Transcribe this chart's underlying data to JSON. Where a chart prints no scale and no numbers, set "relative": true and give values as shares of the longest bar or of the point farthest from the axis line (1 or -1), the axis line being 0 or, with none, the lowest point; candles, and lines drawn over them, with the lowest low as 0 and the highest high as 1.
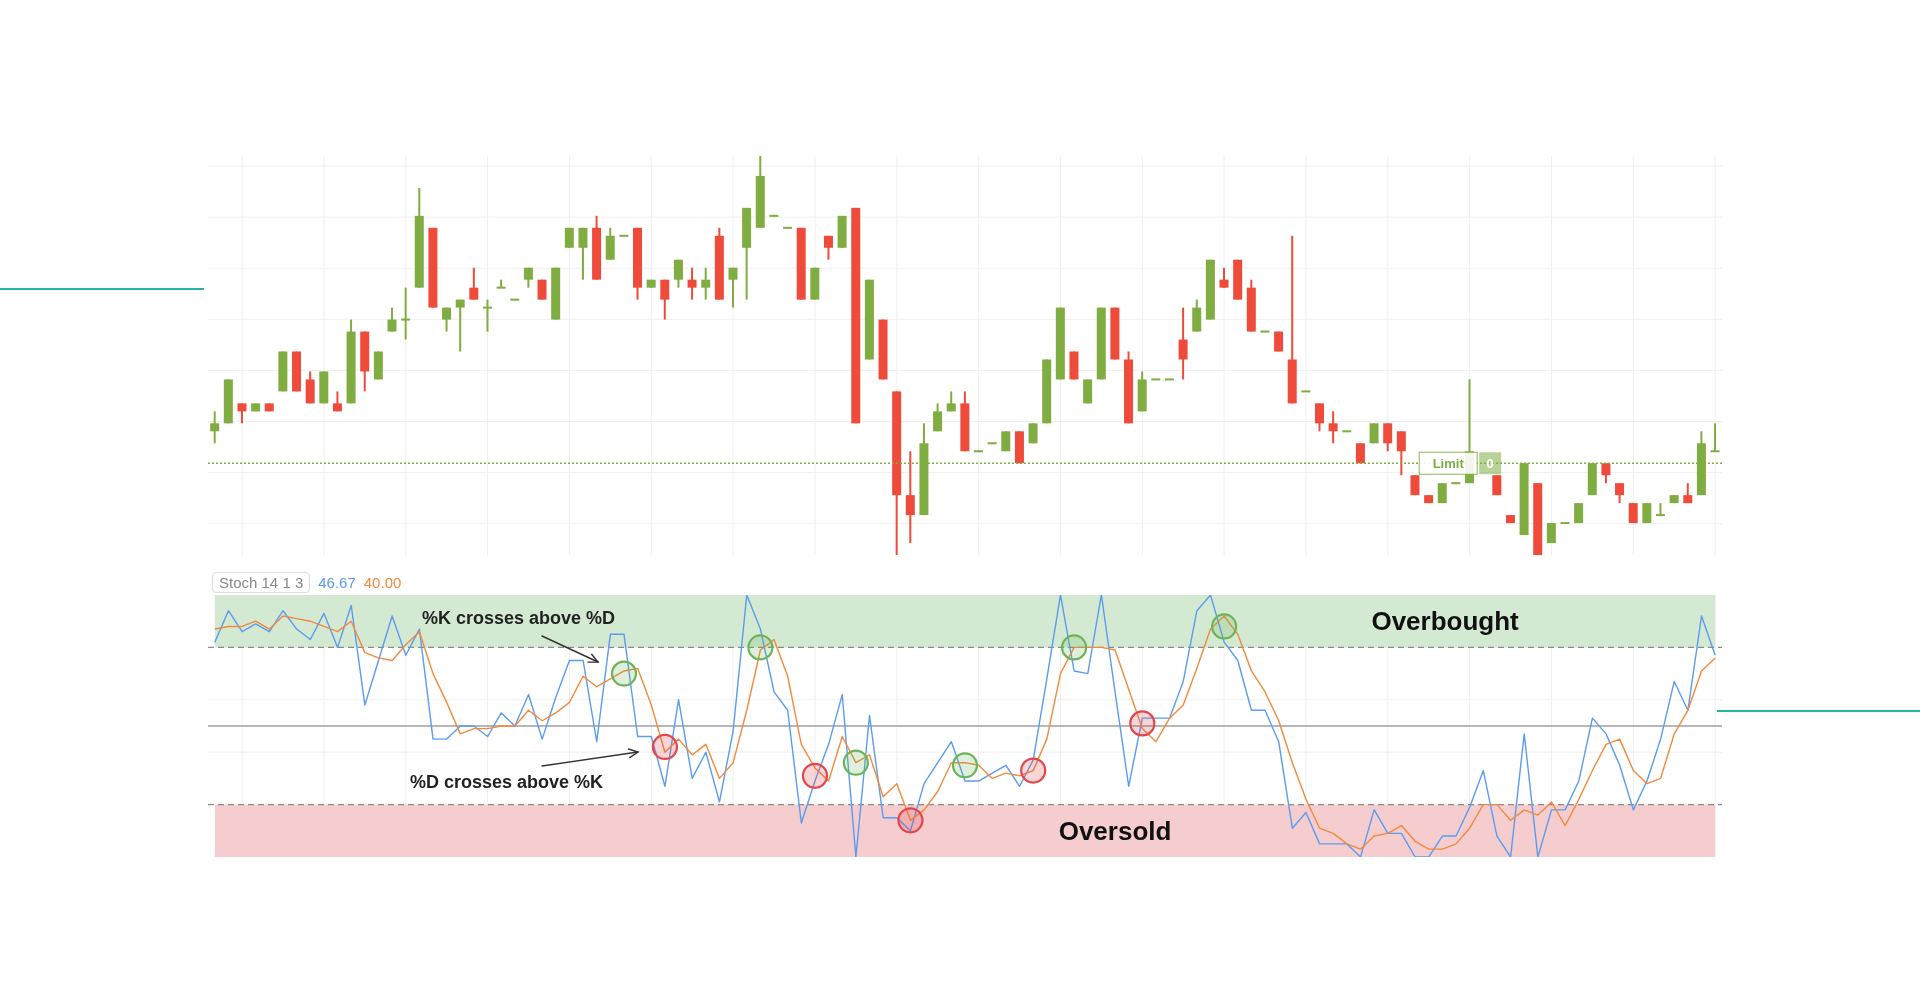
{
  "chart_data": [
    {
      "type": "candlestick",
      "relative": true,
      "grid": true,
      "tick_labels": false,
      "colors": [
        "#80ad41",
        "#80ad41",
        "#ee4b3b",
        "#80ad41",
        "#ee4b3b",
        "#80ad41",
        "#ee4b3b",
        "#ee4b3b",
        "#80ad41",
        "#ee4b3b",
        "#80ad41",
        "#ee4b3b",
        "#80ad41",
        "#80ad41",
        "#80ad41",
        "#80ad41",
        "#ee4b3b",
        "#80ad41",
        "#80ad41",
        "#ee4b3b",
        "#80ad41",
        "#80ad41",
        "#80ad41",
        "#80ad41",
        "#ee4b3b",
        "#80ad41",
        "#80ad41",
        "#80ad41",
        "#ee4b3b",
        "#80ad41",
        "#80ad41",
        "#ee4b3b",
        "#80ad41",
        "#ee4b3b",
        "#80ad41",
        "#ee4b3b",
        "#80ad41",
        "#ee4b3b",
        "#80ad41",
        "#80ad41",
        "#80ad41",
        "#80ad41",
        "#80ad41",
        "#ee4b3b",
        "#80ad41",
        "#ee4b3b",
        "#80ad41",
        "#ee4b3b",
        "#80ad41",
        "#ee4b3b",
        "#ee4b3b",
        "#ee4b3b",
        "#80ad41",
        "#80ad41",
        "#80ad41",
        "#ee4b3b",
        "#80ad41",
        "#80ad41",
        "#80ad41",
        "#ee4b3b",
        "#80ad41",
        "#80ad41",
        "#80ad41",
        "#ee4b3b",
        "#80ad41",
        "#80ad41",
        "#ee4b3b",
        "#ee4b3b",
        "#80ad41",
        "#80ad41",
        "#80ad41",
        "#ee4b3b",
        "#80ad41",
        "#80ad41",
        "#ee4b3b",
        "#ee4b3b",
        "#ee4b3b",
        "#80ad41",
        "#ee4b3b",
        "#ee4b3b",
        "#80ad41",
        "#ee4b3b",
        "#ee4b3b",
        "#80ad41",
        "#ee4b3b",
        "#80ad41",
        "#ee4b3b",
        "#ee4b3b",
        "#ee4b3b",
        "#ee4b3b",
        "#80ad41",
        "#80ad41",
        "#80ad41",
        "#80ad41",
        "#ee4b3b",
        "#ee4b3b",
        "#80ad41",
        "#ee4b3b",
        "#80ad41",
        "#80ad41",
        "#80ad41",
        "#80ad41",
        "#ee4b3b",
        "#ee4b3b",
        "#ee4b3b",
        "#80ad41",
        "#80ad41",
        "#80ad41",
        "#ee4b3b",
        "#80ad41",
        "#80ad41"
      ],
      "categories": [
        null,
        null,
        null,
        null,
        null,
        null,
        null,
        null,
        null,
        null,
        null,
        null,
        null,
        null,
        null,
        null,
        null,
        null,
        null,
        null,
        null,
        null,
        null,
        null,
        null,
        null,
        null,
        null,
        null,
        null,
        null,
        null,
        null,
        null,
        null,
        null,
        null,
        null,
        null,
        null,
        null,
        null,
        null,
        null,
        null,
        null,
        null,
        null,
        null,
        null,
        null,
        null,
        null,
        null,
        null,
        null,
        null,
        null,
        null,
        null,
        null,
        null,
        null,
        null,
        null,
        null,
        null,
        null,
        null,
        null,
        null,
        null,
        null,
        null,
        null,
        null,
        null,
        null,
        null,
        null,
        null,
        null,
        null,
        null,
        null,
        null,
        null,
        null,
        null,
        null,
        null,
        null,
        null,
        null,
        null,
        null,
        null,
        null,
        null,
        null,
        null,
        null,
        null,
        null,
        null,
        null,
        null,
        null,
        null,
        null,
        null
      ],
      "ohlc": [
        [
          0.31,
          0.36,
          0.28,
          0.33
        ],
        [
          0.33,
          0.44,
          0.33,
          0.44
        ],
        [
          0.38,
          0.38,
          0.33,
          0.36
        ],
        [
          0.36,
          0.38,
          0.36,
          0.38
        ],
        [
          0.38,
          0.38,
          0.36,
          0.36
        ],
        [
          0.41,
          0.51,
          0.41,
          0.51
        ],
        [
          0.51,
          0.51,
          0.41,
          0.41
        ],
        [
          0.44,
          0.46,
          0.38,
          0.38
        ],
        [
          0.38,
          0.46,
          0.38,
          0.46
        ],
        [
          0.38,
          0.41,
          0.36,
          0.36
        ],
        [
          0.38,
          0.59,
          0.38,
          0.56
        ],
        [
          0.56,
          0.56,
          0.41,
          0.46
        ],
        [
          0.44,
          0.51,
          0.44,
          0.51
        ],
        [
          0.56,
          0.62,
          0.56,
          0.59
        ],
        [
          0.59,
          0.67,
          0.54,
          0.59
        ],
        [
          0.67,
          0.92,
          0.67,
          0.85
        ],
        [
          0.82,
          0.82,
          0.62,
          0.62
        ],
        [
          0.59,
          0.62,
          0.56,
          0.62
        ],
        [
          0.62,
          0.64,
          0.51,
          0.64
        ],
        [
          0.67,
          0.72,
          0.64,
          0.64
        ],
        [
          0.62,
          0.64,
          0.56,
          0.62
        ],
        [
          0.67,
          0.69,
          0.67,
          0.67
        ],
        [
          0.64,
          0.64,
          0.64,
          0.64
        ],
        [
          0.69,
          0.72,
          0.67,
          0.72
        ],
        [
          0.69,
          0.69,
          0.64,
          0.64
        ],
        [
          0.59,
          0.72,
          0.59,
          0.72
        ],
        [
          0.77,
          0.82,
          0.77,
          0.82
        ],
        [
          0.77,
          0.82,
          0.69,
          0.82
        ],
        [
          0.82,
          0.85,
          0.69,
          0.69
        ],
        [
          0.74,
          0.82,
          0.74,
          0.8
        ],
        [
          0.8,
          0.8,
          0.8,
          0.8
        ],
        [
          0.82,
          0.82,
          0.64,
          0.67
        ],
        [
          0.67,
          0.69,
          0.67,
          0.69
        ],
        [
          0.69,
          0.69,
          0.59,
          0.64
        ],
        [
          0.69,
          0.74,
          0.67,
          0.74
        ],
        [
          0.69,
          0.72,
          0.64,
          0.67
        ],
        [
          0.67,
          0.72,
          0.64,
          0.69
        ],
        [
          0.8,
          0.82,
          0.64,
          0.64
        ],
        [
          0.69,
          0.72,
          0.62,
          0.72
        ],
        [
          0.77,
          0.87,
          0.64,
          0.87
        ],
        [
          0.82,
          1.0,
          0.82,
          0.95
        ],
        [
          0.85,
          0.85,
          0.85,
          0.85
        ],
        [
          0.82,
          0.82,
          0.82,
          0.82
        ],
        [
          0.82,
          0.82,
          0.64,
          0.64
        ],
        [
          0.64,
          0.72,
          0.64,
          0.72
        ],
        [
          0.8,
          0.8,
          0.74,
          0.77
        ],
        [
          0.77,
          0.85,
          0.77,
          0.85
        ],
        [
          0.87,
          0.87,
          0.33,
          0.33
        ],
        [
          0.49,
          0.69,
          0.49,
          0.69
        ],
        [
          0.59,
          0.59,
          0.44,
          0.44
        ],
        [
          0.41,
          0.41,
          0,
          0.15
        ],
        [
          0.15,
          0.26,
          0.03,
          0.1
        ],
        [
          0.1,
          0.33,
          0.1,
          0.28
        ],
        [
          0.31,
          0.38,
          0.31,
          0.36
        ],
        [
          0.36,
          0.41,
          0.36,
          0.38
        ],
        [
          0.38,
          0.41,
          0.26,
          0.26
        ],
        [
          0.26,
          0.26,
          0.26,
          0.26
        ],
        [
          0.28,
          0.28,
          0.28,
          0.28
        ],
        [
          0.26,
          0.31,
          0.26,
          0.31
        ],
        [
          0.31,
          0.31,
          0.23,
          0.23
        ],
        [
          0.28,
          0.33,
          0.28,
          0.33
        ],
        [
          0.33,
          0.49,
          0.33,
          0.49
        ],
        [
          0.44,
          0.62,
          0.44,
          0.62
        ],
        [
          0.51,
          0.51,
          0.44,
          0.44
        ],
        [
          0.38,
          0.44,
          0.38,
          0.44
        ],
        [
          0.44,
          0.62,
          0.44,
          0.62
        ],
        [
          0.62,
          0.62,
          0.49,
          0.49
        ],
        [
          0.49,
          0.51,
          0.33,
          0.33
        ],
        [
          0.36,
          0.46,
          0.36,
          0.44
        ],
        [
          0.44,
          0.44,
          0.44,
          0.44
        ],
        [
          0.44,
          0.44,
          0.44,
          0.44
        ],
        [
          0.54,
          0.62,
          0.44,
          0.49
        ],
        [
          0.56,
          0.64,
          0.56,
          0.62
        ],
        [
          0.59,
          0.74,
          0.59,
          0.74
        ],
        [
          0.69,
          0.72,
          0.67,
          0.67
        ],
        [
          0.74,
          0.74,
          0.64,
          0.64
        ],
        [
          0.67,
          0.69,
          0.56,
          0.56
        ],
        [
          0.56,
          0.56,
          0.56,
          0.56
        ],
        [
          0.56,
          0.56,
          0.51,
          0.51
        ],
        [
          0.49,
          0.8,
          0.38,
          0.38
        ],
        [
          0.41,
          0.41,
          0.41,
          0.41
        ],
        [
          0.38,
          0.38,
          0.31,
          0.33
        ],
        [
          0.33,
          0.36,
          0.28,
          0.31
        ],
        [
          0.31,
          0.31,
          0.31,
          0.31
        ],
        [
          0.28,
          0.28,
          0.23,
          0.23
        ],
        [
          0.28,
          0.33,
          0.28,
          0.33
        ],
        [
          0.33,
          0.33,
          0.26,
          0.28
        ],
        [
          0.31,
          0.31,
          0.2,
          0.26
        ],
        [
          0.2,
          0.2,
          0.15,
          0.15
        ],
        [
          0.15,
          0.15,
          0.13,
          0.13
        ],
        [
          0.13,
          0.18,
          0.13,
          0.18
        ],
        [
          0.18,
          0.18,
          0.18,
          0.18
        ],
        [
          0.18,
          0.44,
          0.18,
          0.26
        ],
        null,
        [
          0.2,
          0.2,
          0.15,
          0.15
        ],
        [
          0.1,
          0.1,
          0.08,
          0.08
        ],
        [
          0.05,
          0.23,
          0.05,
          0.23
        ],
        [
          0.18,
          0.18,
          0,
          0
        ],
        [
          0.03,
          0.08,
          0.03,
          0.08
        ],
        [
          0.08,
          0.08,
          0.08,
          0.08
        ],
        [
          0.08,
          0.13,
          0.08,
          0.13
        ],
        [
          0.15,
          0.23,
          0.15,
          0.23
        ],
        [
          0.23,
          0.23,
          0.18,
          0.2
        ],
        [
          0.18,
          0.18,
          0.13,
          0.15
        ],
        [
          0.13,
          0.13,
          0.08,
          0.08
        ],
        [
          0.08,
          0.13,
          0.08,
          0.13
        ],
        [
          0.1,
          0.13,
          0.1,
          0.1
        ],
        [
          0.13,
          0.15,
          0.13,
          0.15
        ],
        [
          0.15,
          0.18,
          0.13,
          0.13
        ],
        [
          0.15,
          0.31,
          0.15,
          0.28
        ],
        [
          0.26,
          0.33,
          0.26,
          0.26
        ]
      ],
      "ref_lines": [
        {
          "axis": "y",
          "value": 0.23,
          "label": "Limit",
          "color": "#80ad41",
          "line_style": "dotted"
        }
      ],
      "annotations": [
        "0"
      ]
    },
    {
      "type": "line",
      "relative": true,
      "title": "Stoch 14 1 3",
      "legend": "top left",
      "grid": true,
      "tick_labels": false,
      "marker": "none",
      "line_style": "solid",
      "categories": [
        null,
        null,
        null,
        null,
        null,
        null,
        null,
        null,
        null,
        null,
        null,
        null,
        null,
        null,
        null,
        null,
        null,
        null,
        null,
        null,
        null,
        null,
        null,
        null,
        null,
        null,
        null,
        null,
        null,
        null,
        null,
        null,
        null,
        null,
        null,
        null,
        null,
        null,
        null,
        null,
        null,
        null,
        null,
        null,
        null,
        null,
        null,
        null,
        null,
        null,
        null,
        null,
        null,
        null,
        null,
        null,
        null,
        null,
        null,
        null,
        null,
        null,
        null,
        null,
        null,
        null,
        null,
        null,
        null,
        null,
        null,
        null,
        null,
        null,
        null,
        null,
        null,
        null,
        null,
        null,
        null,
        null,
        null,
        null,
        null,
        null,
        null,
        null,
        null,
        null,
        null,
        null,
        null,
        null,
        null,
        null,
        null,
        null,
        null,
        null,
        null,
        null,
        null,
        null,
        null,
        null,
        null,
        null,
        null,
        null,
        null
      ],
      "series": [
        {
          "name": "46.67",
          "color": "#5b9cf0",
          "values": [
            0.82,
            0.94,
            0.86,
            0.89,
            0.86,
            0.94,
            0.87,
            0.83,
            0.93,
            0.8,
            0.96,
            0.58,
            0.75,
            0.92,
            0.77,
            0.87,
            0.45,
            0.45,
            0.5,
            0.5,
            0.46,
            0.55,
            0.5,
            0.62,
            0.45,
            0.61,
            0.75,
            0.75,
            0.44,
            0.85,
            0.85,
            0.46,
            0.46,
            0.27,
            0.6,
            0.3,
            0.4,
            0.21,
            0.48,
            1.0,
            0.87,
            0.63,
            0.56,
            0.13,
            0.29,
            0.43,
            0.62,
            0,
            0.54,
            0.15,
            0.15,
            0.1,
            0.28,
            0.36,
            0.44,
            0.29,
            0.29,
            0.32,
            0.35,
            0.27,
            0.37,
            0.68,
            1.0,
            0.71,
            0.7,
            1.0,
            0.63,
            0.27,
            0.53,
            0.53,
            0.53,
            0.67,
            0.94,
            1.0,
            0.82,
            0.75,
            0.56,
            0.56,
            0.44,
            0.11,
            0.17,
            0.05,
            0.05,
            0.05,
            0,
            0.18,
            0.09,
            0.09,
            0,
            0,
            0.08,
            0.08,
            0.19,
            0.33,
            0.08,
            0,
            0.47,
            0,
            0.18,
            0.18,
            0.29,
            0.53,
            0.47,
            0.35,
            0.18,
            0.29,
            0.45,
            0.67,
            0.56,
            0.92,
            0.77
          ]
        },
        {
          "name": "40.00",
          "color": "#f28a3e",
          "values": [
            0.87,
            0.88,
            0.88,
            0.9,
            0.87,
            0.92,
            0.91,
            0.9,
            0.88,
            0.86,
            0.9,
            0.78,
            0.76,
            0.75,
            0.81,
            0.86,
            0.7,
            0.59,
            0.47,
            0.49,
            0.49,
            0.5,
            0.5,
            0.56,
            0.52,
            0.55,
            0.59,
            0.69,
            0.65,
            0.68,
            0.71,
            0.72,
            0.58,
            0.4,
            0.45,
            0.39,
            0.43,
            0.3,
            0.36,
            0.56,
            0.79,
            0.83,
            0.69,
            0.43,
            0.34,
            0.29,
            0.46,
            0.36,
            0.39,
            0.23,
            0.28,
            0.14,
            0.18,
            0.25,
            0.36,
            0.36,
            0.35,
            0.3,
            0.32,
            0.31,
            0.33,
            0.45,
            0.7,
            0.8,
            0.8,
            0.8,
            0.79,
            0.64,
            0.49,
            0.44,
            0.53,
            0.58,
            0.72,
            0.87,
            0.92,
            0.85,
            0.71,
            0.63,
            0.52,
            0.36,
            0.22,
            0.11,
            0.09,
            0.05,
            0.03,
            0.08,
            0.09,
            0.12,
            0.06,
            0.03,
            0.03,
            0.05,
            0.11,
            0.2,
            0.2,
            0.14,
            0.18,
            0.16,
            0.21,
            0.12,
            0.22,
            0.33,
            0.43,
            0.45,
            0.33,
            0.28,
            0.3,
            0.47,
            0.56,
            0.71,
            0.76
          ]
        },
        {
          "type": "scatter",
          "marker": "circle",
          "color": "#6cb45a",
          "values": [
            null,
            null,
            null,
            null,
            null,
            null,
            null,
            null,
            null,
            null,
            null,
            null,
            null,
            null,
            null,
            null,
            null,
            null,
            null,
            null,
            null,
            null,
            null,
            null,
            null,
            null,
            null,
            null,
            null,
            null,
            0.7,
            null,
            null,
            null,
            null,
            null,
            null,
            null,
            null,
            null,
            0.8,
            null,
            null,
            null,
            null,
            null,
            null,
            0.36,
            null,
            null,
            null,
            null,
            null,
            null,
            null,
            0.35,
            null,
            null,
            null,
            null,
            null,
            null,
            null,
            0.8,
            null,
            null,
            null,
            null,
            null,
            null,
            null,
            null,
            null,
            null,
            0.88,
            null,
            null,
            null,
            null,
            null,
            null,
            null,
            null,
            null,
            null,
            null,
            null,
            null,
            null,
            null,
            null,
            null,
            null,
            null,
            null,
            null,
            null,
            null,
            null,
            null,
            null,
            null,
            null,
            null,
            null,
            null,
            null,
            null,
            null,
            null,
            null
          ]
        },
        {
          "type": "scatter",
          "marker": "circle",
          "color": "#e0464c",
          "values": [
            null,
            null,
            null,
            null,
            null,
            null,
            null,
            null,
            null,
            null,
            null,
            null,
            null,
            null,
            null,
            null,
            null,
            null,
            null,
            null,
            null,
            null,
            null,
            null,
            null,
            null,
            null,
            null,
            null,
            null,
            null,
            null,
            null,
            0.42,
            null,
            null,
            null,
            null,
            null,
            null,
            null,
            null,
            null,
            null,
            0.31,
            null,
            null,
            null,
            null,
            null,
            null,
            0.14,
            null,
            null,
            null,
            null,
            null,
            null,
            null,
            null,
            0.33,
            null,
            null,
            null,
            null,
            null,
            null,
            null,
            0.51,
            null,
            null,
            null,
            null,
            null,
            null,
            null,
            null,
            null,
            null,
            null,
            null,
            null,
            null,
            null,
            null,
            null,
            null,
            null,
            null,
            null,
            null,
            null,
            null,
            null,
            null,
            null,
            null,
            null,
            null,
            null,
            null,
            null,
            null,
            null,
            null,
            null,
            null,
            null,
            null,
            null,
            null
          ]
        }
      ],
      "bands": [
        {
          "axis": "y",
          "from": 0.8,
          "to": 1,
          "label": "Overbought",
          "color": "#d4e9d2"
        },
        {
          "axis": "y",
          "from": 0,
          "to": 0.2,
          "label": "Oversold",
          "color": "#f5cdcf"
        }
      ],
      "ref_lines": [
        {
          "axis": "y",
          "value": 0.8,
          "color": "#8a8a8a",
          "line_style": "dashed"
        },
        {
          "axis": "y",
          "value": 0.5,
          "color": "#9e9ea4",
          "line_style": "solid"
        },
        {
          "axis": "y",
          "value": 0.2,
          "color": "#8a8a8a",
          "line_style": "dashed"
        }
      ],
      "annotations": [
        "%K crosses above %D",
        "%D crosses above %K"
      ]
    }
  ]
}
